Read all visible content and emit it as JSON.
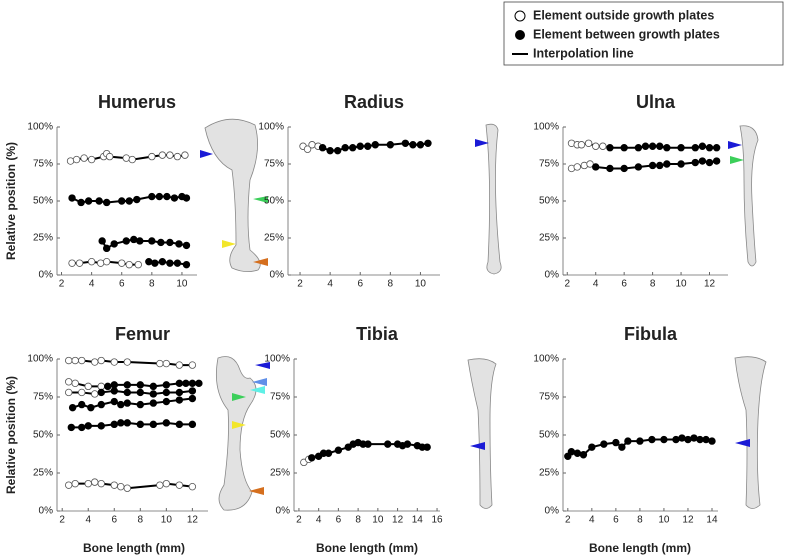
{
  "legend": {
    "entries": [
      "Element outside growth plates",
      "Element between growth plates",
      "Interpolation line"
    ]
  },
  "y_label": "Relative position (%)",
  "x_label": "Bone length (mm)",
  "chart_data": [
    {
      "type": "scatter",
      "title": "Humerus",
      "xlim": [
        1.7,
        11
      ],
      "xticks": [
        2,
        4,
        6,
        8,
        10
      ],
      "ylim": [
        0,
        100
      ],
      "yticks": [
        {
          "value": 0,
          "label": "0%"
        },
        {
          "value": 25,
          "label": "25%"
        },
        {
          "value": 50,
          "label": "50%"
        },
        {
          "value": 75,
          "label": "75%"
        },
        {
          "value": 100,
          "label": "100%"
        }
      ],
      "series": [
        {
          "marker": "open",
          "x": [
            2.6,
            3,
            3.5,
            4,
            4.8,
            5,
            5.2,
            6.3,
            6.7,
            8,
            8.7,
            9.2,
            9.7,
            10.2
          ],
          "values": [
            77,
            78,
            79,
            78,
            80,
            82,
            80,
            79,
            78,
            80,
            81,
            81,
            80,
            81
          ]
        },
        {
          "marker": "filled",
          "x": [
            2.7,
            3.3,
            3.8,
            4.5,
            5,
            6,
            6.5,
            7,
            8,
            8.5,
            9,
            9.5,
            10,
            10.3
          ],
          "values": [
            52,
            49,
            50,
            50,
            49,
            50,
            50,
            51,
            53,
            53,
            53,
            52,
            53,
            52
          ]
        },
        {
          "marker": "filled",
          "x": [
            4.7,
            5,
            5.5,
            6.3,
            6.8,
            7.2,
            8,
            8.6,
            9.2,
            9.8,
            10.3
          ],
          "values": [
            23,
            18,
            21,
            23,
            24,
            23,
            23,
            22,
            22,
            21,
            20
          ]
        },
        {
          "marker": "open",
          "x": [
            2.7,
            3.2,
            4,
            4.6,
            5,
            6,
            6.5,
            7.1
          ],
          "values": [
            8,
            8,
            9,
            8,
            9,
            8,
            7,
            7
          ]
        },
        {
          "marker": "filled",
          "x": [
            7.8,
            8.2,
            8.7,
            9.2,
            9.7,
            10.3
          ],
          "values": [
            9,
            8,
            9,
            8,
            8,
            7
          ]
        }
      ]
    },
    {
      "type": "scatter",
      "title": "Radius",
      "xlim": [
        1.2,
        11.3
      ],
      "xticks": [
        2,
        4,
        6,
        8,
        10
      ],
      "ylim": [
        0,
        100
      ],
      "yticks": [
        {
          "value": 0,
          "label": "0%"
        },
        {
          "value": 25,
          "label": "25%"
        },
        {
          "value": 50,
          "label": "50%"
        },
        {
          "value": 75,
          "label": "75%"
        },
        {
          "value": 100,
          "label": "100%"
        }
      ],
      "series": [
        {
          "marker": "open",
          "x": [
            2.2,
            2.5,
            2.8,
            3.2
          ],
          "values": [
            87,
            85,
            88,
            87
          ]
        },
        {
          "marker": "filled",
          "x": [
            3.5,
            4,
            4.5,
            5,
            5.5,
            6,
            6.5,
            7,
            8,
            9,
            9.5,
            10,
            10.5
          ],
          "values": [
            86,
            84,
            84,
            86,
            86,
            87,
            87,
            88,
            88,
            89,
            88,
            88,
            89
          ]
        }
      ]
    },
    {
      "type": "scatter",
      "title": "Ulna",
      "xlim": [
        1.7,
        13.3
      ],
      "xticks": [
        2,
        4,
        6,
        8,
        10,
        12
      ],
      "ylim": [
        0,
        100
      ],
      "yticks": [
        {
          "value": 0,
          "label": "0%"
        },
        {
          "value": 25,
          "label": "25%"
        },
        {
          "value": 50,
          "label": "50%"
        },
        {
          "value": 75,
          "label": "75%"
        },
        {
          "value": 100,
          "label": "100%"
        }
      ],
      "series": [
        {
          "marker": "open",
          "x": [
            2.3,
            2.7,
            3,
            3.5,
            4,
            4.5
          ],
          "values": [
            89,
            88,
            88,
            89,
            87,
            87
          ]
        },
        {
          "marker": "filled",
          "x": [
            5,
            6,
            7,
            7.5,
            8,
            8.5,
            9,
            10,
            11,
            11.5,
            12,
            12.5
          ],
          "values": [
            86,
            86,
            86,
            87,
            87,
            87,
            86,
            86,
            86,
            87,
            86,
            86
          ]
        },
        {
          "marker": "open",
          "x": [
            2.3,
            2.7,
            3.2,
            3.6
          ],
          "values": [
            72,
            73,
            74,
            75
          ]
        },
        {
          "marker": "filled",
          "x": [
            4,
            5,
            6,
            7,
            8,
            8.5,
            9,
            10,
            11,
            11.5,
            12,
            12.5
          ],
          "values": [
            73,
            72,
            72,
            73,
            74,
            74,
            75,
            75,
            76,
            77,
            76,
            77
          ]
        }
      ]
    },
    {
      "type": "scatter",
      "title": "Femur",
      "xlim": [
        1.6,
        13.2
      ],
      "xticks": [
        2,
        4,
        6,
        8,
        10,
        12
      ],
      "ylim": [
        0,
        100
      ],
      "yticks": [
        {
          "value": 0,
          "label": "0%"
        },
        {
          "value": 25,
          "label": "25%"
        },
        {
          "value": 50,
          "label": "50%"
        },
        {
          "value": 75,
          "label": "75%"
        },
        {
          "value": 100,
          "label": "100%"
        }
      ],
      "series": [
        {
          "marker": "open",
          "x": [
            2.5,
            3,
            3.5,
            4.5,
            5,
            6,
            7,
            9.5,
            10,
            11,
            12
          ],
          "values": [
            99,
            99,
            99,
            98,
            99,
            98,
            98,
            97,
            97,
            96,
            96
          ]
        },
        {
          "marker": "open",
          "x": [
            2.5,
            3,
            4,
            5
          ],
          "values": [
            85,
            84,
            82,
            82
          ]
        },
        {
          "marker": "filled",
          "x": [
            5.5,
            6,
            7,
            8,
            9,
            10,
            11,
            11.5,
            12,
            12.5
          ],
          "values": [
            82,
            83,
            83,
            83,
            82,
            83,
            84,
            84,
            84,
            84
          ]
        },
        {
          "marker": "open",
          "x": [
            2.5,
            3.5,
            4.5
          ],
          "values": [
            78,
            78,
            77
          ]
        },
        {
          "marker": "filled",
          "x": [
            5,
            6,
            7,
            8,
            9,
            10,
            11,
            12
          ],
          "values": [
            78,
            79,
            78,
            78,
            77,
            78,
            78,
            79
          ]
        },
        {
          "marker": "filled",
          "x": [
            2.8,
            3.5,
            4.2,
            5,
            6,
            6.5,
            7,
            8,
            9,
            10,
            11,
            12
          ],
          "values": [
            68,
            70,
            68,
            70,
            72,
            70,
            71,
            70,
            71,
            72,
            73,
            74
          ]
        },
        {
          "marker": "filled",
          "x": [
            2.7,
            3.5,
            4,
            5,
            6,
            6.5,
            7,
            8,
            9,
            10,
            11,
            12
          ],
          "values": [
            55,
            55,
            56,
            56,
            57,
            58,
            58,
            57,
            57,
            58,
            57,
            57
          ]
        },
        {
          "marker": "open",
          "x": [
            2.5,
            3,
            4,
            4.5,
            5,
            6,
            6.5,
            7,
            9.5,
            10,
            11,
            12
          ],
          "values": [
            17,
            18,
            18,
            19,
            18,
            17,
            16,
            15,
            17,
            18,
            17,
            16
          ]
        }
      ]
    },
    {
      "type": "scatter",
      "title": "Tibia",
      "xlim": [
        1.5,
        16.3
      ],
      "xticks": [
        2,
        4,
        6,
        8,
        10,
        12,
        14,
        16
      ],
      "ylim": [
        0,
        100
      ],
      "yticks": [
        {
          "value": 0,
          "label": "0%"
        },
        {
          "value": 25,
          "label": "25%"
        },
        {
          "value": 50,
          "label": "50%"
        },
        {
          "value": 75,
          "label": "75%"
        },
        {
          "value": 100,
          "label": "100%"
        }
      ],
      "series": [
        {
          "marker": "open",
          "x": [
            2.5,
            3
          ],
          "values": [
            32,
            34
          ]
        },
        {
          "marker": "filled",
          "x": [
            3.3,
            4,
            4.5,
            5,
            6,
            7,
            7.5,
            8,
            8.5,
            9,
            11,
            12,
            12.5,
            13,
            14,
            14.5,
            15
          ],
          "values": [
            35,
            36,
            38,
            38,
            40,
            42,
            44,
            45,
            44,
            44,
            44,
            44,
            43,
            44,
            43,
            42,
            42
          ]
        }
      ]
    },
    {
      "type": "scatter",
      "title": "Fibula",
      "xlim": [
        1.6,
        14.5
      ],
      "xticks": [
        2,
        4,
        6,
        8,
        10,
        12,
        14
      ],
      "ylim": [
        0,
        100
      ],
      "yticks": [
        {
          "value": 0,
          "label": "0%"
        },
        {
          "value": 25,
          "label": "25%"
        },
        {
          "value": 50,
          "label": "50%"
        },
        {
          "value": 75,
          "label": "75%"
        },
        {
          "value": 100,
          "label": "100%"
        }
      ],
      "series": [
        {
          "marker": "filled",
          "x": [
            2,
            2.3,
            2.8,
            3.3,
            4,
            5,
            6,
            6.5,
            7,
            8,
            9,
            10,
            11,
            11.5,
            12,
            12.5,
            13,
            13.5,
            14
          ],
          "values": [
            36,
            39,
            38,
            37,
            42,
            44,
            45,
            42,
            46,
            46,
            47,
            47,
            47,
            48,
            47,
            48,
            47,
            47,
            46
          ]
        }
      ]
    }
  ]
}
